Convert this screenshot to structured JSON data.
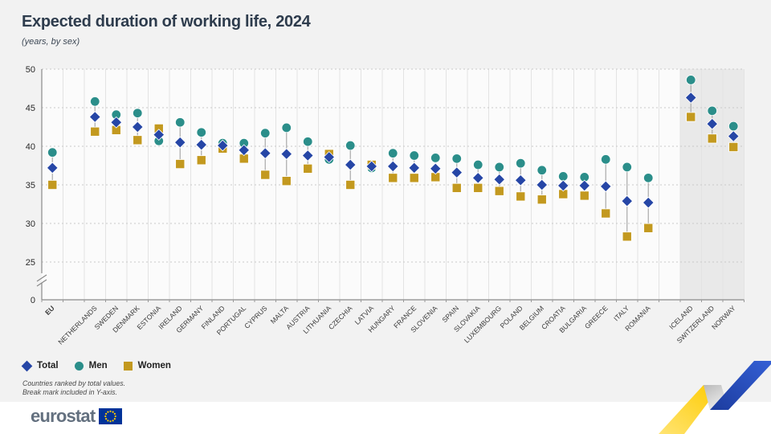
{
  "header": {
    "title": "Expected duration of working life, 2024",
    "subtitle": "(years, by sex)"
  },
  "legend": {
    "items": [
      {
        "id": "total",
        "label": "Total",
        "shape": "diamond"
      },
      {
        "id": "men",
        "label": "Men",
        "shape": "circle"
      },
      {
        "id": "women",
        "label": "Women",
        "shape": "square"
      }
    ]
  },
  "notes": {
    "line1": "Countries ranked by total values.",
    "line2": "Break mark included in Y-axis."
  },
  "footer": {
    "brand": "eurostat"
  },
  "colors": {
    "total": "#2646a6",
    "men": "#2b8e8a",
    "women": "#c3991f",
    "axis": "#8a8a8a",
    "grid_dashed": "#c9c9c9",
    "grid_vertical": "#e3e3e3",
    "plot_bg": "#fbfbfb",
    "efta_shade": "#e9e9e9",
    "connector": "#a9a9a9",
    "ribbon_blue": "#2b50c4",
    "ribbon_yellow": "#fdd31c",
    "eu_flag_blue": "#003399",
    "eu_flag_stars": "#ffcc00"
  },
  "chart_data": {
    "type": "scatter",
    "title": "Expected duration of working life, 2024",
    "subtitle": "(years, by sex)",
    "unit": "years",
    "ylabel": "years",
    "xlabel": "",
    "ylim": [
      0,
      50
    ],
    "yticks": [
      0,
      25,
      30,
      35,
      40,
      45,
      50
    ],
    "axis_break": "Y-axis break between 0 and 25",
    "legend_position": "bottom-left",
    "series_names": [
      "Total",
      "Men",
      "Women"
    ],
    "points": [
      {
        "label": "EU",
        "section": "aggregate",
        "total": 37.2,
        "men": 39.2,
        "women": 35.0
      },
      {
        "label": "NETHERLANDS",
        "section": "member",
        "total": 43.8,
        "men": 45.8,
        "women": 41.9
      },
      {
        "label": "SWEDEN",
        "section": "member",
        "total": 43.1,
        "men": 44.1,
        "women": 42.1
      },
      {
        "label": "DENMARK",
        "section": "member",
        "total": 42.5,
        "men": 44.3,
        "women": 40.8
      },
      {
        "label": "ESTONIA",
        "section": "member",
        "total": 41.5,
        "men": 40.7,
        "women": 42.3
      },
      {
        "label": "IRELAND",
        "section": "member",
        "total": 40.5,
        "men": 43.1,
        "women": 37.7
      },
      {
        "label": "GERMANY",
        "section": "member",
        "total": 40.2,
        "men": 41.8,
        "women": 38.2
      },
      {
        "label": "FINLAND",
        "section": "member",
        "total": 40.1,
        "men": 40.4,
        "women": 39.7
      },
      {
        "label": "PORTUGAL",
        "section": "member",
        "total": 39.5,
        "men": 40.4,
        "women": 38.4
      },
      {
        "label": "CYPRUS",
        "section": "member",
        "total": 39.1,
        "men": 41.7,
        "women": 36.3
      },
      {
        "label": "MALTA",
        "section": "member",
        "total": 39.0,
        "men": 42.4,
        "women": 35.5
      },
      {
        "label": "AUSTRIA",
        "section": "member",
        "total": 38.8,
        "men": 40.6,
        "women": 37.1
      },
      {
        "label": "LITHUANIA",
        "section": "member",
        "total": 38.6,
        "men": 38.3,
        "women": 39.0
      },
      {
        "label": "CZECHIA",
        "section": "member",
        "total": 37.6,
        "men": 40.1,
        "women": 35.0
      },
      {
        "label": "LATVIA",
        "section": "member",
        "total": 37.4,
        "men": 37.2,
        "women": 37.6
      },
      {
        "label": "HUNGARY",
        "section": "member",
        "total": 37.4,
        "men": 39.1,
        "women": 35.9
      },
      {
        "label": "FRANCE",
        "section": "member",
        "total": 37.2,
        "men": 38.8,
        "women": 35.9
      },
      {
        "label": "SLOVENIA",
        "section": "member",
        "total": 37.1,
        "men": 38.5,
        "women": 36.0
      },
      {
        "label": "SPAIN",
        "section": "member",
        "total": 36.6,
        "men": 38.4,
        "women": 34.6
      },
      {
        "label": "SLOVAKIA",
        "section": "member",
        "total": 35.9,
        "men": 37.6,
        "women": 34.6
      },
      {
        "label": "LUXEMBOURG",
        "section": "member",
        "total": 35.7,
        "men": 37.3,
        "women": 34.2
      },
      {
        "label": "POLAND",
        "section": "member",
        "total": 35.6,
        "men": 37.8,
        "women": 33.5
      },
      {
        "label": "BELGIUM",
        "section": "member",
        "total": 35.0,
        "men": 36.9,
        "women": 33.1
      },
      {
        "label": "CROATIA",
        "section": "member",
        "total": 34.9,
        "men": 36.1,
        "women": 33.8
      },
      {
        "label": "BULGARIA",
        "section": "member",
        "total": 34.9,
        "men": 36.0,
        "women": 33.6
      },
      {
        "label": "GREECE",
        "section": "member",
        "total": 34.8,
        "men": 38.3,
        "women": 31.3
      },
      {
        "label": "ITALY",
        "section": "member",
        "total": 32.9,
        "men": 37.3,
        "women": 28.3
      },
      {
        "label": "ROMANIA",
        "section": "member",
        "total": 32.7,
        "men": 35.9,
        "women": 29.4
      },
      {
        "label": "ICELAND",
        "section": "efta",
        "total": 46.3,
        "men": 48.6,
        "women": 43.8
      },
      {
        "label": "SWITZERLAND",
        "section": "efta",
        "total": 42.9,
        "men": 44.6,
        "women": 41.0
      },
      {
        "label": "NORWAY",
        "section": "efta",
        "total": 41.3,
        "men": 42.6,
        "women": 39.9
      }
    ]
  }
}
